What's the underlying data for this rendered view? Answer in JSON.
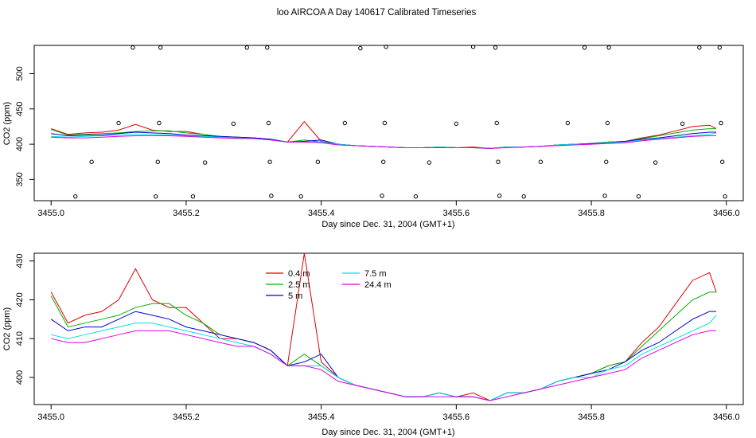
{
  "title": "loo AIRCOA A  Day 140617  Calibrated Timeseries",
  "chart_data": [
    {
      "type": "line",
      "xlabel": "Day since Dec. 31, 2004 (GMT+1)",
      "ylabel": "CO2 (ppm)",
      "xlim": [
        3454.975,
        3456.025
      ],
      "ylim": [
        320,
        540
      ],
      "x_ticks": [
        "3455.0",
        "3455.2",
        "3455.4",
        "3455.6",
        "3455.8",
        "3456.0"
      ],
      "y_ticks": [
        "350",
        "400",
        "450",
        "500"
      ],
      "colors": {
        "0.4 m": "#e00000",
        "2.5 m": "#00b000",
        "5 m": "#0000cc",
        "7.5 m": "#00e0e0",
        "24.4 m": "#e000e0"
      },
      "raw_points": [
        [
          3455.036,
          326
        ],
        [
          3455.06,
          375
        ],
        [
          3455.1,
          430
        ],
        [
          3455.121,
          537
        ],
        [
          3455.155,
          326
        ],
        [
          3455.158,
          375
        ],
        [
          3455.16,
          430
        ],
        [
          3455.162,
          537
        ],
        [
          3455.21,
          326
        ],
        [
          3455.228,
          374
        ],
        [
          3455.27,
          429
        ],
        [
          3455.29,
          537
        ],
        [
          3455.32,
          537
        ],
        [
          3455.322,
          430
        ],
        [
          3455.324,
          375
        ],
        [
          3455.326,
          327
        ],
        [
          3455.37,
          326
        ],
        [
          3455.395,
          375
        ],
        [
          3455.435,
          430
        ],
        [
          3455.458,
          536
        ],
        [
          3455.49,
          327
        ],
        [
          3455.492,
          375
        ],
        [
          3455.494,
          430
        ],
        [
          3455.496,
          538
        ],
        [
          3455.54,
          326
        ],
        [
          3455.56,
          374
        ],
        [
          3455.6,
          429
        ],
        [
          3455.625,
          538
        ],
        [
          3455.658,
          537
        ],
        [
          3455.66,
          430
        ],
        [
          3455.662,
          375
        ],
        [
          3455.664,
          327
        ],
        [
          3455.7,
          326
        ],
        [
          3455.725,
          375
        ],
        [
          3455.765,
          430
        ],
        [
          3455.79,
          537
        ],
        [
          3455.82,
          327
        ],
        [
          3455.822,
          375
        ],
        [
          3455.824,
          430
        ],
        [
          3455.826,
          537
        ],
        [
          3455.87,
          326
        ],
        [
          3455.895,
          374
        ],
        [
          3455.935,
          429
        ],
        [
          3455.96,
          537
        ],
        [
          3455.99,
          537
        ],
        [
          3455.992,
          430
        ],
        [
          3455.994,
          375
        ],
        [
          3455.998,
          326
        ]
      ]
    },
    {
      "type": "line",
      "xlabel": "Day since Dec. 31, 2004 (GMT+1)",
      "ylabel": "CO2 (ppm)",
      "xlim": [
        3454.975,
        3456.025
      ],
      "ylim": [
        393,
        432
      ],
      "x_ticks": [
        "3455.0",
        "3455.2",
        "3455.4",
        "3455.6",
        "3455.8",
        "3456.0"
      ],
      "y_ticks": [
        "400",
        "410",
        "420",
        "430"
      ],
      "legend": [
        "0.4 m",
        "2.5 m",
        "5 m",
        "7.5 m",
        "24.4 m"
      ],
      "x": [
        3455.0,
        3455.025,
        3455.05,
        3455.075,
        3455.1,
        3455.125,
        3455.15,
        3455.175,
        3455.2,
        3455.225,
        3455.25,
        3455.275,
        3455.3,
        3455.325,
        3455.35,
        3455.375,
        3455.4,
        3455.425,
        3455.45,
        3455.475,
        3455.5,
        3455.525,
        3455.55,
        3455.575,
        3455.6,
        3455.625,
        3455.65,
        3455.675,
        3455.7,
        3455.725,
        3455.75,
        3455.775,
        3455.8,
        3455.825,
        3455.85,
        3455.875,
        3455.9,
        3455.925,
        3455.95,
        3455.975,
        3455.985
      ],
      "series": [
        {
          "name": "0.4 m",
          "values": [
            422,
            414,
            416,
            417,
            420,
            428,
            420,
            418,
            418,
            414,
            410,
            410,
            409,
            407,
            403,
            432,
            404,
            400,
            398,
            397,
            396,
            395,
            395,
            396,
            395,
            396,
            394,
            396,
            396,
            397,
            399,
            400,
            401,
            403,
            404,
            409,
            413,
            419,
            425,
            427,
            422
          ]
        },
        {
          "name": "2.5 m",
          "values": [
            421,
            413,
            414,
            415,
            416,
            418,
            419,
            419,
            416,
            414,
            411,
            410,
            409,
            407,
            403,
            406,
            403,
            400,
            398,
            397,
            396,
            395,
            395,
            396,
            395,
            395,
            394,
            396,
            396,
            397,
            399,
            400,
            401,
            403,
            404,
            408,
            412,
            416,
            420,
            422,
            422
          ]
        },
        {
          "name": "5 m",
          "values": [
            415,
            412,
            413,
            413,
            415,
            417,
            416,
            415,
            413,
            412,
            411,
            410,
            409,
            407,
            403,
            404,
            406,
            400,
            398,
            397,
            396,
            395,
            395,
            396,
            395,
            395,
            394,
            396,
            396,
            397,
            399,
            400,
            401,
            402,
            404,
            407,
            409,
            412,
            415,
            417,
            417
          ]
        },
        {
          "name": "7.5 m",
          "values": [
            411,
            410,
            411,
            412,
            413,
            414,
            414,
            413,
            412,
            411,
            410,
            409,
            408,
            406,
            403,
            403,
            403,
            400,
            398,
            397,
            396,
            395,
            395,
            396,
            395,
            395,
            394,
            396,
            396,
            397,
            399,
            400,
            400,
            402,
            403,
            406,
            408,
            410,
            412,
            414,
            416
          ]
        },
        {
          "name": "24.4 m",
          "values": [
            410,
            409,
            409,
            410,
            411,
            412,
            412,
            412,
            411,
            410,
            409,
            408,
            408,
            406,
            403,
            403,
            402,
            399,
            398,
            397,
            396,
            395,
            395,
            395,
            395,
            395,
            394,
            395,
            396,
            397,
            398,
            399,
            400,
            401,
            402,
            405,
            407,
            409,
            411,
            412,
            412
          ]
        }
      ]
    }
  ]
}
